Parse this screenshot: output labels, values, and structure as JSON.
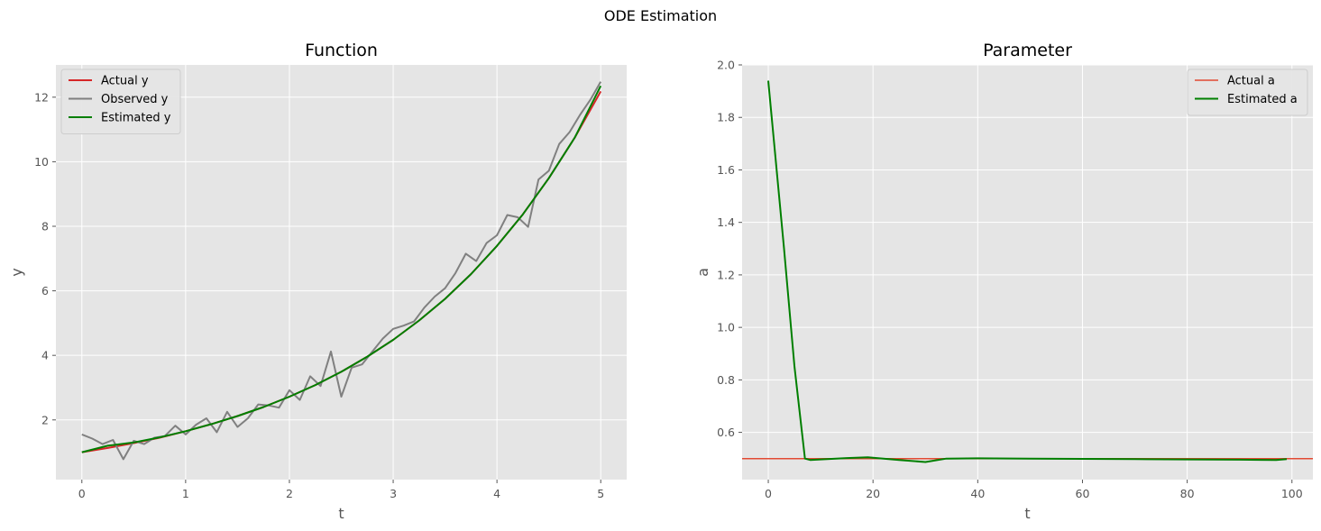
{
  "suptitle": "ODE Estimation",
  "chart_data": [
    {
      "type": "line",
      "title": "Function",
      "xlabel": "t",
      "ylabel": "y",
      "xlim": [
        -0.25,
        5.25
      ],
      "ylim": [
        0.15,
        13.0
      ],
      "xticks": [
        0,
        1,
        2,
        3,
        4,
        5
      ],
      "yticks": [
        2,
        4,
        6,
        8,
        10,
        12
      ],
      "legend_position": "upper-left",
      "grid": true,
      "series": [
        {
          "name": "Actual y",
          "color": "#d62728",
          "x": [
            0,
            0.25,
            0.5,
            0.75,
            1,
            1.25,
            1.5,
            1.75,
            2,
            2.25,
            2.5,
            2.75,
            3,
            3.25,
            3.5,
            3.75,
            4,
            4.25,
            4.5,
            4.75,
            5
          ],
          "y": [
            1.0,
            1.13,
            1.28,
            1.45,
            1.65,
            1.87,
            2.12,
            2.4,
            2.72,
            3.08,
            3.49,
            3.96,
            4.48,
            5.08,
            5.75,
            6.52,
            7.39,
            8.37,
            9.49,
            10.75,
            12.18
          ]
        },
        {
          "name": "Observed y",
          "color": "#808080",
          "x": [
            0,
            0.1,
            0.2,
            0.3,
            0.4,
            0.5,
            0.6,
            0.7,
            0.8,
            0.9,
            1.0,
            1.1,
            1.2,
            1.3,
            1.4,
            1.5,
            1.6,
            1.7,
            1.8,
            1.9,
            2.0,
            2.1,
            2.2,
            2.3,
            2.4,
            2.5,
            2.6,
            2.7,
            2.8,
            2.9,
            3.0,
            3.1,
            3.2,
            3.3,
            3.4,
            3.5,
            3.6,
            3.7,
            3.8,
            3.9,
            4.0,
            4.1,
            4.2,
            4.3,
            4.4,
            4.5,
            4.6,
            4.7,
            4.8,
            4.9,
            5.0
          ],
          "y": [
            1.55,
            1.42,
            1.25,
            1.38,
            0.78,
            1.35,
            1.25,
            1.45,
            1.5,
            1.82,
            1.55,
            1.85,
            2.05,
            1.62,
            2.25,
            1.78,
            2.05,
            2.48,
            2.45,
            2.38,
            2.92,
            2.62,
            3.35,
            3.05,
            4.12,
            2.72,
            3.62,
            3.72,
            4.12,
            4.52,
            4.82,
            4.92,
            5.05,
            5.48,
            5.82,
            6.08,
            6.55,
            7.15,
            6.92,
            7.48,
            7.72,
            8.35,
            8.28,
            7.98,
            9.45,
            9.72,
            10.55,
            10.92,
            11.45,
            11.92,
            12.48
          ]
        },
        {
          "name": "Estimated y",
          "color": "#007f00",
          "x": [
            0,
            0.25,
            0.5,
            0.75,
            1,
            1.25,
            1.5,
            1.75,
            2,
            2.25,
            2.5,
            2.75,
            3,
            3.25,
            3.5,
            3.75,
            4,
            4.25,
            4.5,
            4.75,
            5
          ],
          "y": [
            1.0,
            1.2,
            1.3,
            1.46,
            1.65,
            1.87,
            2.12,
            2.4,
            2.72,
            3.08,
            3.49,
            3.96,
            4.48,
            5.08,
            5.75,
            6.52,
            7.39,
            8.37,
            9.49,
            10.75,
            12.35
          ]
        }
      ]
    },
    {
      "type": "line",
      "title": "Parameter",
      "xlabel": "t",
      "ylabel": "a",
      "xlim": [
        -5,
        104
      ],
      "ylim": [
        0.42,
        2.0
      ],
      "xticks": [
        0,
        20,
        40,
        60,
        80,
        100
      ],
      "yticks": [
        0.6,
        0.8,
        1.0,
        1.2,
        1.4,
        1.6,
        1.8,
        2.0
      ],
      "legend_position": "upper-right",
      "grid": true,
      "series": [
        {
          "name": "Actual a",
          "color": "#e24a33",
          "style": "hline",
          "y_const": 0.5
        },
        {
          "name": "Estimated a",
          "color": "#007f00",
          "x": [
            0,
            3,
            5,
            7,
            8,
            10,
            15,
            19,
            22,
            25,
            30,
            34,
            40,
            50,
            60,
            70,
            80,
            90,
            97,
            99
          ],
          "y": [
            1.94,
            1.3,
            0.85,
            0.5,
            0.495,
            0.497,
            0.502,
            0.505,
            0.5,
            0.495,
            0.487,
            0.5,
            0.501,
            0.5,
            0.499,
            0.498,
            0.497,
            0.496,
            0.495,
            0.498
          ]
        }
      ]
    }
  ]
}
